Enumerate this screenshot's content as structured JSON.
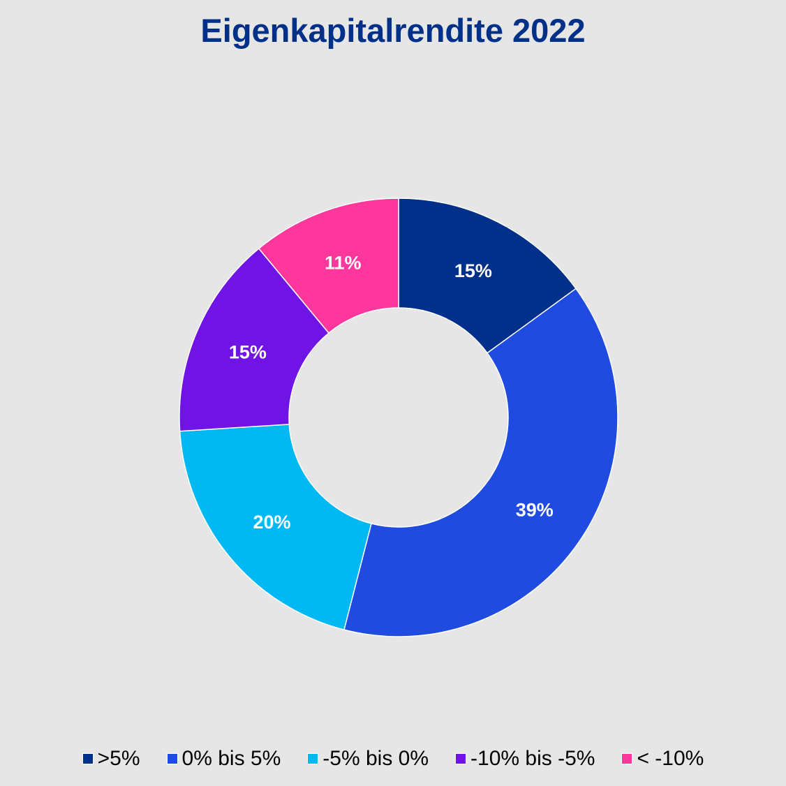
{
  "chart_data": {
    "type": "pie",
    "variant": "donut",
    "title": "Eigenkapitalrendite 2022",
    "categories": [
      ">5%",
      "0% bis 5%",
      "-5% bis 0%",
      "-10% bis -5%",
      "< -10%"
    ],
    "values": [
      15,
      39,
      20,
      15,
      11
    ],
    "labels": [
      "15%",
      "39%",
      "20%",
      "15%",
      "11%"
    ],
    "colors": [
      "#00308a",
      "#1f4be0",
      "#00b9f2",
      "#7014e6",
      "#ff369b"
    ],
    "legend_position": "bottom",
    "unit": "%"
  }
}
